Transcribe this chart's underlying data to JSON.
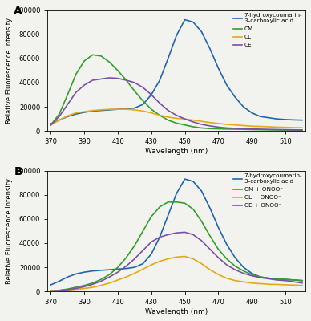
{
  "wavelengths": [
    370,
    375,
    380,
    385,
    390,
    395,
    400,
    405,
    410,
    415,
    420,
    425,
    430,
    435,
    440,
    445,
    450,
    455,
    460,
    465,
    470,
    475,
    480,
    485,
    490,
    495,
    500,
    505,
    510,
    515,
    520
  ],
  "panelA": {
    "blue": [
      6000,
      9000,
      12000,
      14000,
      15500,
      16500,
      17000,
      17500,
      18000,
      18500,
      19000,
      22000,
      30000,
      42000,
      60000,
      79000,
      92000,
      90000,
      82000,
      68000,
      52000,
      38000,
      28000,
      20000,
      15000,
      12000,
      11000,
      10000,
      9500,
      9200,
      9000
    ],
    "green": [
      5000,
      14000,
      30000,
      47000,
      58000,
      63000,
      62000,
      57000,
      50000,
      42000,
      33000,
      25000,
      18000,
      13000,
      9000,
      6500,
      5000,
      3500,
      2500,
      2000,
      1800,
      1600,
      1500,
      1400,
      1200,
      1100,
      1000,
      900,
      800,
      700,
      600
    ],
    "orange": [
      5000,
      9000,
      12500,
      15000,
      16000,
      17000,
      17500,
      18000,
      18000,
      18000,
      17500,
      16500,
      15000,
      13000,
      11500,
      10500,
      10000,
      9000,
      8000,
      7000,
      6200,
      5500,
      5000,
      4500,
      4000,
      3800,
      3500,
      3200,
      3000,
      2800,
      2700
    ],
    "purple": [
      5000,
      12000,
      22000,
      32000,
      38000,
      42000,
      43000,
      44000,
      43500,
      42000,
      40000,
      36000,
      30000,
      23000,
      17000,
      13000,
      10000,
      7500,
      5500,
      4200,
      3200,
      2500,
      2200,
      1900,
      1700,
      1500,
      1300,
      1200,
      1100,
      1000,
      900
    ]
  },
  "panelB": {
    "blue": [
      5500,
      8500,
      12000,
      14500,
      16000,
      17000,
      17500,
      18000,
      18500,
      19000,
      20000,
      23000,
      31000,
      45000,
      63000,
      81000,
      93000,
      91000,
      83000,
      69000,
      53000,
      39000,
      28000,
      20000,
      15000,
      12000,
      11000,
      10500,
      10000,
      9500,
      9000
    ],
    "green": [
      500,
      1000,
      2000,
      3500,
      5000,
      7000,
      10000,
      14000,
      20000,
      28000,
      38000,
      50000,
      62000,
      70000,
      74000,
      74000,
      73000,
      68000,
      58000,
      46000,
      35000,
      27000,
      21000,
      17000,
      14000,
      12000,
      11000,
      10500,
      10000,
      9500,
      9000
    ],
    "orange": [
      500,
      800,
      1200,
      1800,
      2500,
      3500,
      5000,
      7000,
      9500,
      12000,
      15000,
      18500,
      22000,
      25000,
      27000,
      28500,
      29000,
      27000,
      23000,
      18000,
      14000,
      11000,
      9000,
      8000,
      7000,
      6500,
      6000,
      5800,
      5500,
      5300,
      5000
    ],
    "purple": [
      500,
      800,
      1500,
      2500,
      4000,
      6000,
      8500,
      12000,
      16000,
      21000,
      27000,
      34000,
      41000,
      45000,
      47000,
      48500,
      49000,
      47000,
      42000,
      35000,
      28000,
      22000,
      18000,
      15000,
      13000,
      11500,
      10500,
      9500,
      9000,
      8000,
      7000
    ]
  },
  "colors": {
    "blue": "#2166ac",
    "green": "#33a02c",
    "orange": "#e6a817",
    "purple": "#7b4fa8"
  },
  "legend_A": [
    "7-hydroxycoumarin-\n3-carboxylic acid",
    "CM",
    "CL",
    "CE"
  ],
  "legend_B": [
    "7-hydroxycoumarin-\n3-carboxylic acid",
    "CM + ONOO⁻",
    "CL + ONOO⁻",
    "CE + ONOO⁻"
  ],
  "ylabel": "Relative Fluorescence Intensity",
  "xlabel": "Wavelength (nm)",
  "ylim": [
    0,
    100000
  ],
  "yticks": [
    0,
    20000,
    40000,
    60000,
    80000,
    100000
  ],
  "xticks": [
    370,
    390,
    410,
    430,
    450,
    470,
    490,
    510
  ],
  "background": "#f2f2ee"
}
